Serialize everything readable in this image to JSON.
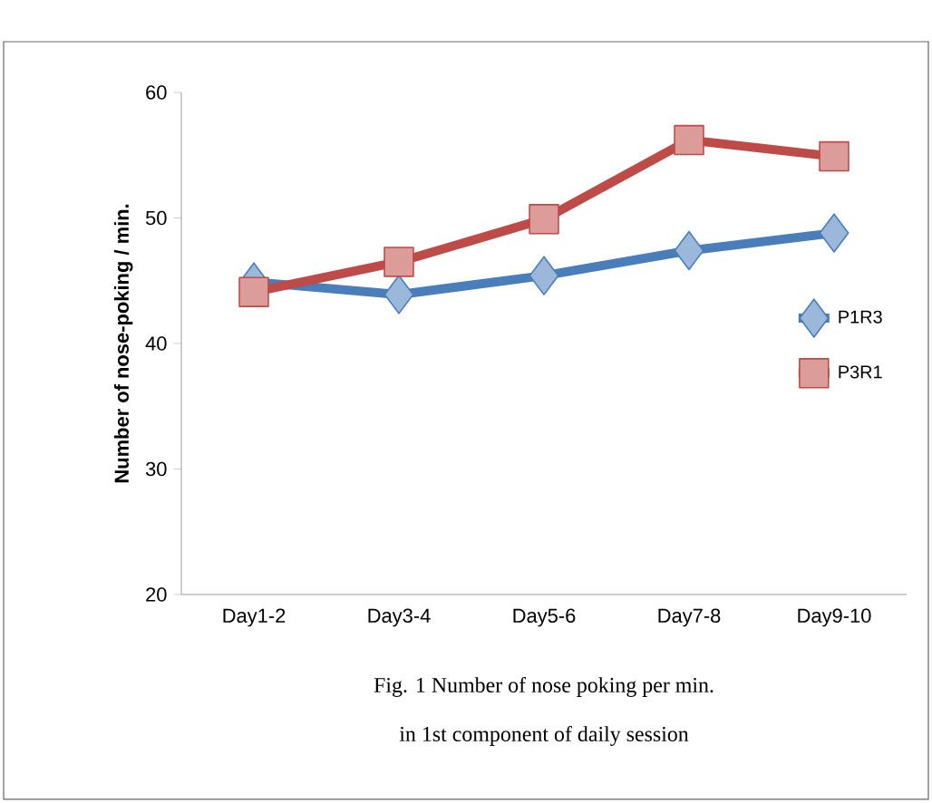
{
  "chart_data": {
    "type": "line",
    "ylabel": "Number of nose-poking / min.",
    "categories": [
      "Day1-2",
      "Day3-4",
      "Day5-6",
      "Day7-8",
      "Day9-10"
    ],
    "series": [
      {
        "name": "P1R3",
        "color": "#4a7ebb",
        "marker": "diamond",
        "values": [
          44.9,
          43.9,
          45.4,
          47.4,
          48.8
        ]
      },
      {
        "name": "P3R1",
        "color": "#be4b48",
        "marker": "square",
        "values": [
          44.1,
          46.5,
          49.9,
          56.2,
          54.9
        ]
      }
    ],
    "ylim": [
      20,
      60
    ],
    "yticks": [
      20,
      30,
      40,
      50,
      60
    ],
    "legend": "right",
    "grid": false,
    "annotations": [
      "Fig. 1 Number of nose poking per min.",
      "in 1st component of daily session"
    ]
  }
}
